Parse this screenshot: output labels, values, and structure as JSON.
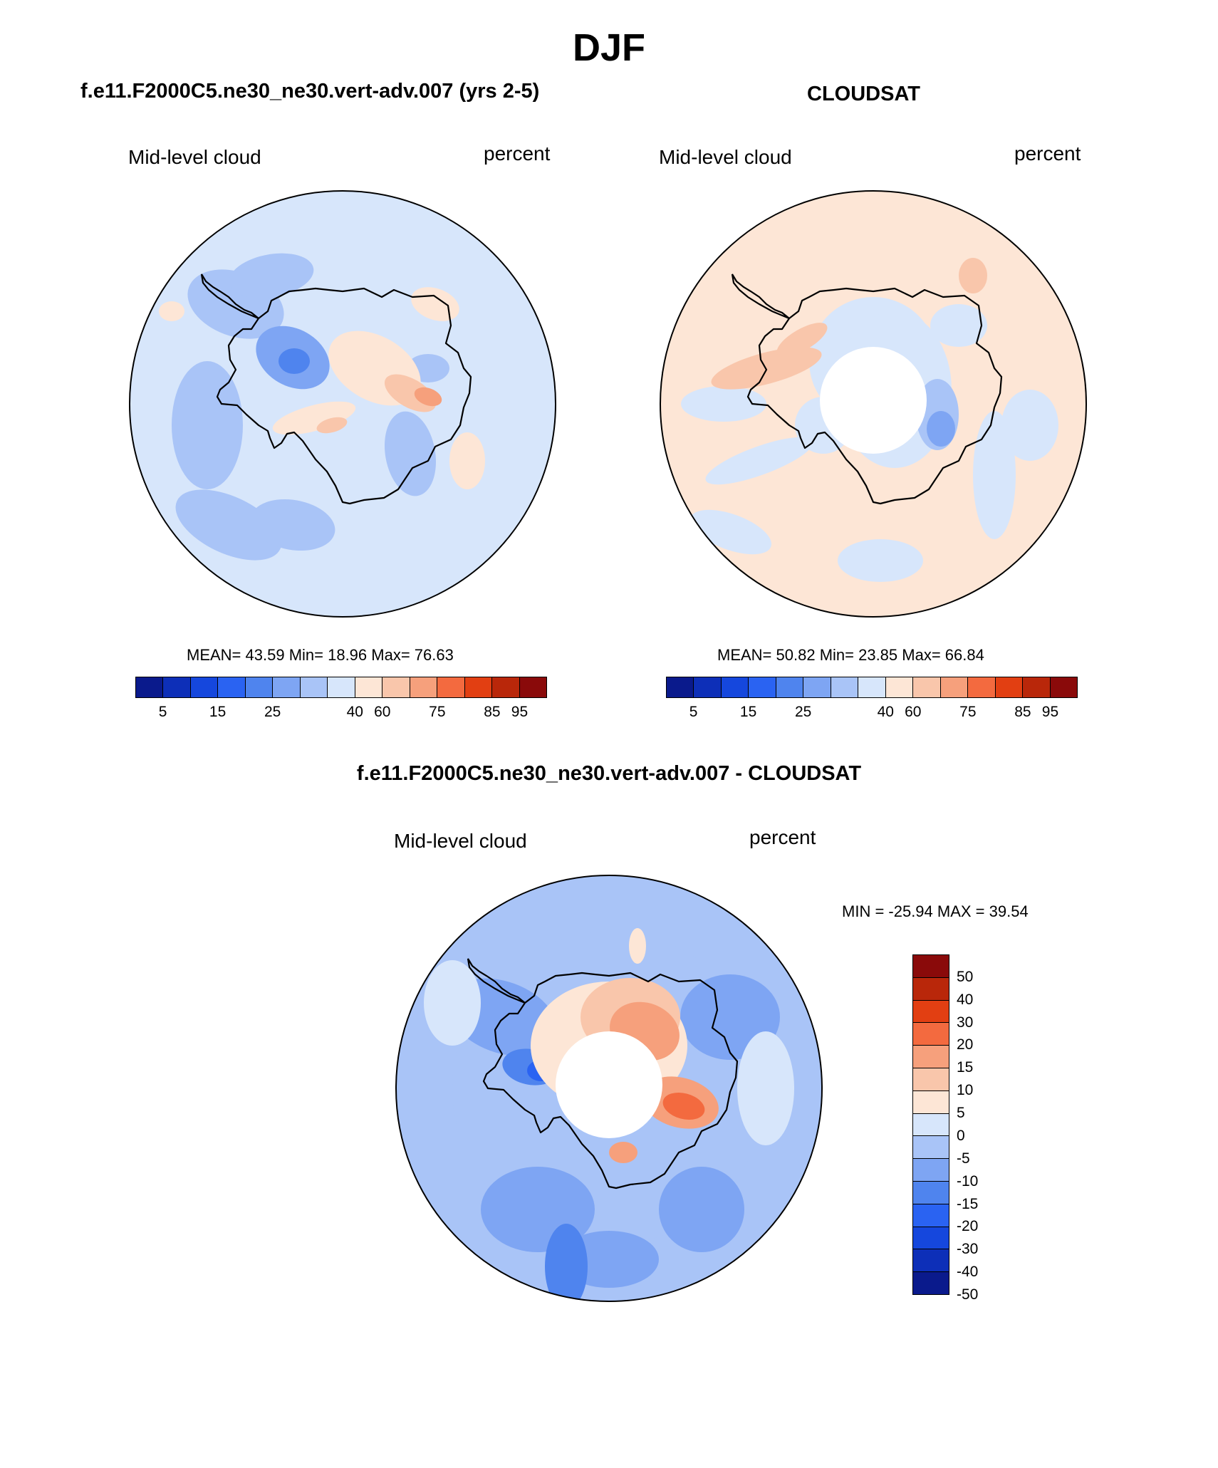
{
  "title": "DJF",
  "colors": {
    "abs_scale": [
      "#0a1a8c",
      "#0d2fb8",
      "#1547dd",
      "#2a63f2",
      "#4f84ee",
      "#7ea5f3",
      "#a9c4f7",
      "#d7e6fb",
      "#fde6d6",
      "#f9c6ab",
      "#f6a07c",
      "#f36a3f",
      "#e23f12",
      "#b9270a",
      "#8a0a0a"
    ],
    "diff_scale": [
      "#0a1a8c",
      "#0d2fb8",
      "#1547dd",
      "#2a63f2",
      "#4f84ee",
      "#7ea5f3",
      "#a9c4f7",
      "#d7e6fb",
      "#fde6d6",
      "#f9c6ab",
      "#f6a07c",
      "#f36a3f",
      "#e23f12",
      "#b9270a",
      "#8a0a0a"
    ],
    "land_line": "#000000"
  },
  "panels": {
    "model": {
      "title": "f.e11.F2000C5.ne30_ne30.vert-adv.007 (yrs 2-5)",
      "variable": "Mid-level cloud",
      "units": "percent",
      "stats": "MEAN=  43.59  Min=  18.96  Max=  76.63",
      "colorbar_ticks": [
        "5",
        "15",
        "25",
        "40",
        "60",
        "75",
        "85",
        "95"
      ]
    },
    "obs": {
      "title": "CLOUDSAT",
      "variable": "Mid-level cloud",
      "units": "percent",
      "stats": "MEAN=  50.82  Min=  23.85  Max=  66.84",
      "colorbar_ticks": [
        "5",
        "15",
        "25",
        "40",
        "60",
        "75",
        "85",
        "95"
      ]
    },
    "diff": {
      "title": "f.e11.F2000C5.ne30_ne30.vert-adv.007 - CLOUDSAT",
      "variable": "Mid-level cloud",
      "units": "percent",
      "stats": "MIN = -25.94 MAX =  39.54",
      "colorbar_ticks": [
        "50",
        "40",
        "30",
        "20",
        "15",
        "10",
        "5",
        "0",
        "-5",
        "-10",
        "-15",
        "-20",
        "-30",
        "-40",
        "-50"
      ]
    }
  }
}
